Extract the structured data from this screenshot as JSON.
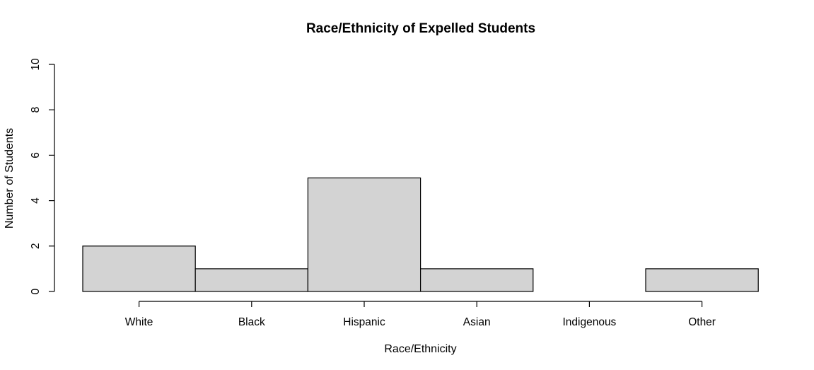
{
  "chart_data": {
    "type": "bar",
    "title": "Race/Ethnicity of Expelled Students",
    "xlabel": "Race/Ethnicity",
    "ylabel": "Number of Students",
    "categories": [
      "White",
      "Black",
      "Hispanic",
      "Asian",
      "Indigenous",
      "Other"
    ],
    "values": [
      2,
      1,
      5,
      1,
      0,
      1
    ],
    "ylim": [
      0,
      10
    ],
    "yticks": [
      0,
      2,
      4,
      6,
      8,
      10
    ],
    "bar_color": "#d3d3d3",
    "grid": false,
    "legend": false
  }
}
